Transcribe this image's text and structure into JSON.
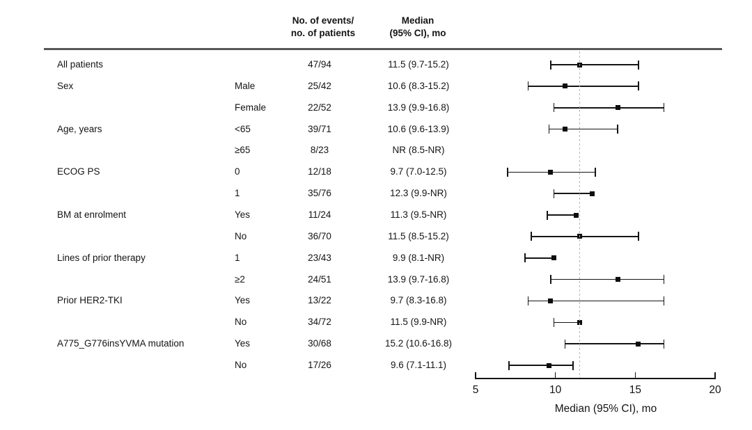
{
  "figure": {
    "columns": {
      "events_header_line1": "No. of events/",
      "events_header_line2": "no. of patients",
      "median_header_line1": "Median",
      "median_header_line2": "(95% CI), mo"
    }
  },
  "chart_data": {
    "type": "forest",
    "title": "",
    "xlabel": "Median (95% CI), mo",
    "xlim": [
      5,
      20
    ],
    "xticks": [
      5,
      10,
      15,
      20
    ],
    "reference_line": 11.5,
    "grid": false,
    "marker_style": "filled-black-square",
    "note": "Rows with NR upper bound are drawn from lower CI to the median with no right cap; the NR (8.5-NR) row has no interval drawn.",
    "rows": [
      {
        "group": "All patients",
        "subgroup": "",
        "events": "47/94",
        "median_text": "11.5 (9.7-15.2)",
        "median": 11.5,
        "lower": 9.7,
        "upper": 15.2
      },
      {
        "group": "Sex",
        "subgroup": "Male",
        "events": "25/42",
        "median_text": "10.6 (8.3-15.2)",
        "median": 10.6,
        "lower": 8.3,
        "upper": 15.2
      },
      {
        "group": "",
        "subgroup": "Female",
        "events": "22/52",
        "median_text": "13.9 (9.9-16.8)",
        "median": 13.9,
        "lower": 9.9,
        "upper": 16.8
      },
      {
        "group": "Age, years",
        "subgroup": "<65",
        "events": "39/71",
        "median_text": "10.6 (9.6-13.9)",
        "median": 10.6,
        "lower": 9.6,
        "upper": 13.9
      },
      {
        "group": "",
        "subgroup": "≥65",
        "events": "8/23",
        "median_text": "NR (8.5-NR)",
        "median": null,
        "lower": null,
        "upper": null
      },
      {
        "group": "ECOG PS",
        "subgroup": "0",
        "events": "12/18",
        "median_text": "9.7 (7.0-12.5)",
        "median": 9.7,
        "lower": 7.0,
        "upper": 12.5
      },
      {
        "group": "",
        "subgroup": "1",
        "events": "35/76",
        "median_text": "12.3 (9.9-NR)",
        "median": 12.3,
        "lower": 9.9,
        "upper": null
      },
      {
        "group": "BM at enrolment",
        "subgroup": "Yes",
        "events": "11/24",
        "median_text": "11.3 (9.5-NR)",
        "median": 11.3,
        "lower": 9.5,
        "upper": null
      },
      {
        "group": "",
        "subgroup": "No",
        "events": "36/70",
        "median_text": "11.5 (8.5-15.2)",
        "median": 11.5,
        "lower": 8.5,
        "upper": 15.2
      },
      {
        "group": "Lines of prior therapy",
        "subgroup": "1",
        "events": "23/43",
        "median_text": "9.9 (8.1-NR)",
        "median": 9.9,
        "lower": 8.1,
        "upper": null
      },
      {
        "group": "",
        "subgroup": "≥2",
        "events": "24/51",
        "median_text": "13.9 (9.7-16.8)",
        "median": 13.9,
        "lower": 9.7,
        "upper": 16.8
      },
      {
        "group": "Prior HER2-TKI",
        "subgroup": "Yes",
        "events": "13/22",
        "median_text": "9.7 (8.3-16.8)",
        "median": 9.7,
        "lower": 8.3,
        "upper": 16.8
      },
      {
        "group": "",
        "subgroup": "No",
        "events": "34/72",
        "median_text": "11.5 (9.9-NR)",
        "median": 11.5,
        "lower": 9.9,
        "upper": null
      },
      {
        "group": "A775_G776insYVMA mutation",
        "subgroup": "Yes",
        "events": "30/68",
        "median_text": "15.2 (10.6-16.8)",
        "median": 15.2,
        "lower": 10.6,
        "upper": 16.8
      },
      {
        "group": "",
        "subgroup": "No",
        "events": "17/26",
        "median_text": "9.6 (7.1-11.1)",
        "median": 9.6,
        "lower": 7.1,
        "upper": 11.1
      }
    ],
    "colors": {
      "text": "#141414",
      "marker": "#0d0d0d",
      "interval_line": "#141414",
      "reference_line": "#b4b4b4",
      "header_rule": "#57575a",
      "background": "#ffffff"
    }
  }
}
